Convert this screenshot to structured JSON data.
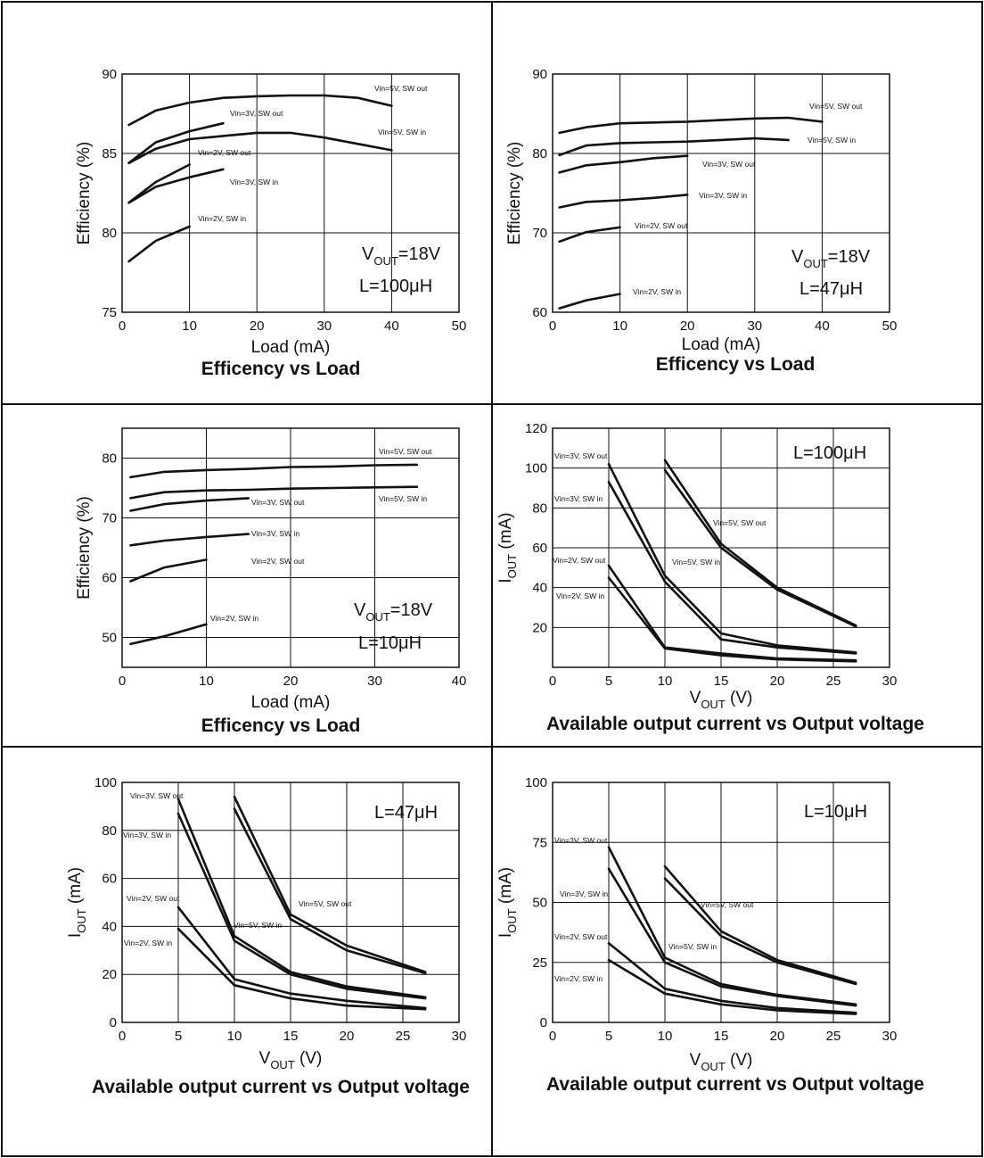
{
  "chart_data": [
    {
      "type": "line",
      "title": "Efficency vs Load",
      "xlabel": "Load (mA)",
      "ylabel": "Efficiency (%)",
      "xlim": [
        0,
        50
      ],
      "ylim": [
        75,
        90
      ],
      "xticks": [
        "0",
        "10",
        "20",
        "30",
        "40",
        "50"
      ],
      "yticks": [
        "75",
        "80",
        "85",
        "90"
      ],
      "grid": true,
      "annotation": {
        "v": "V",
        "sub": "OUT",
        "rest": "=18V",
        "line2": "L=100μH"
      },
      "series": [
        {
          "name": "Vin=5V, SW out",
          "x": [
            1,
            5,
            10,
            15,
            20,
            25,
            30,
            35,
            40
          ],
          "y": [
            86.8,
            87.7,
            88.2,
            88.5,
            88.6,
            88.65,
            88.65,
            88.5,
            88.0
          ]
        },
        {
          "name": "Vin=5V, SW in",
          "x": [
            1,
            5,
            10,
            15,
            20,
            25,
            30,
            35,
            40
          ],
          "y": [
            84.4,
            85.3,
            85.9,
            86.1,
            86.3,
            86.3,
            86.0,
            85.6,
            85.2
          ]
        },
        {
          "name": "Vin=3V, SW out",
          "x": [
            1,
            5,
            10,
            15
          ],
          "y": [
            84.4,
            85.7,
            86.4,
            86.9
          ]
        },
        {
          "name": "Vin=3V, SW in",
          "x": [
            1,
            5,
            10,
            15
          ],
          "y": [
            81.9,
            82.9,
            83.5,
            84.0
          ]
        },
        {
          "name": "Vin=2V, SW out",
          "x": [
            1,
            5,
            10
          ],
          "y": [
            81.9,
            83.2,
            84.3
          ]
        },
        {
          "name": "Vin=2V, SW in",
          "x": [
            1,
            5,
            10
          ],
          "y": [
            78.2,
            79.5,
            80.4
          ]
        }
      ]
    },
    {
      "type": "line",
      "title": "Efficency vs Load",
      "xlabel": "Load (mA)",
      "ylabel": "Efficiency (%)",
      "xlim": [
        0,
        50
      ],
      "ylim": [
        60,
        90
      ],
      "xticks": [
        "0",
        "10",
        "20",
        "30",
        "40",
        "50"
      ],
      "yticks": [
        "60",
        "70",
        "80",
        "90"
      ],
      "grid": true,
      "annotation": {
        "v": "V",
        "sub": "OUT",
        "rest": "=18V",
        "line2": "L=47μH"
      },
      "series": [
        {
          "name": "Vin=5V, SW out",
          "x": [
            1,
            5,
            10,
            15,
            20,
            25,
            30,
            35,
            40
          ],
          "y": [
            82.6,
            83.3,
            83.8,
            83.9,
            84.0,
            84.2,
            84.4,
            84.5,
            84.0
          ]
        },
        {
          "name": "Vin=5V, SW in",
          "x": [
            1,
            5,
            10,
            15,
            20,
            25,
            30,
            35
          ],
          "y": [
            79.8,
            81.0,
            81.3,
            81.4,
            81.5,
            81.7,
            81.9,
            81.7
          ]
        },
        {
          "name": "Vin=3V, SW out",
          "x": [
            1,
            5,
            10,
            15,
            20
          ],
          "y": [
            77.6,
            78.5,
            78.9,
            79.4,
            79.7
          ]
        },
        {
          "name": "Vin=3V, SW in",
          "x": [
            1,
            5,
            10,
            15,
            20
          ],
          "y": [
            73.2,
            73.9,
            74.1,
            74.4,
            74.8
          ]
        },
        {
          "name": "Vin=2V, SW out",
          "x": [
            1,
            5,
            10
          ],
          "y": [
            68.9,
            70.1,
            70.7
          ]
        },
        {
          "name": "Vin=2V, SW in",
          "x": [
            1,
            5,
            10
          ],
          "y": [
            60.5,
            61.5,
            62.3
          ]
        }
      ]
    },
    {
      "type": "line",
      "title": "Efficency vs Load",
      "xlabel": "Load (mA)",
      "ylabel": "Efficiency (%)",
      "xlim": [
        0,
        40
      ],
      "ylim": [
        45,
        85
      ],
      "xticks": [
        "0",
        "10",
        "20",
        "30",
        "40"
      ],
      "yticks": [
        "50",
        "60",
        "70",
        "80"
      ],
      "ytick_values": [
        50,
        60,
        70,
        80
      ],
      "grid": true,
      "annotation": {
        "v": "V",
        "sub": "OUT",
        "rest": "=18V",
        "line2": "L=10μH"
      },
      "series": [
        {
          "name": "Vin=5V, SW out",
          "x": [
            1,
            5,
            10,
            15,
            20,
            25,
            30,
            35
          ],
          "y": [
            76.8,
            77.7,
            78.0,
            78.2,
            78.5,
            78.6,
            78.8,
            78.9
          ]
        },
        {
          "name": "Vin=5V, SW in",
          "x": [
            1,
            5,
            10,
            15,
            20,
            25,
            30,
            35
          ],
          "y": [
            73.3,
            74.3,
            74.6,
            74.7,
            74.9,
            75.0,
            75.1,
            75.2
          ]
        },
        {
          "name": "Vin=3V, SW out",
          "x": [
            1,
            5,
            10,
            15
          ],
          "y": [
            71.2,
            72.3,
            72.9,
            73.3
          ]
        },
        {
          "name": "Vin=3V, SW in",
          "x": [
            1,
            5,
            10,
            15
          ],
          "y": [
            65.4,
            66.2,
            66.8,
            67.3
          ]
        },
        {
          "name": "Vin=2V, SW out",
          "x": [
            1,
            5,
            10
          ],
          "y": [
            59.4,
            61.7,
            63.0
          ]
        },
        {
          "name": "Vin=2V, SW in",
          "x": [
            1,
            5,
            10
          ],
          "y": [
            48.9,
            50.2,
            52.2
          ]
        }
      ]
    },
    {
      "type": "line",
      "title": "Available output current vs Output voltage",
      "xlabel": {
        "main": "V",
        "sub": "OUT",
        "unit": " (V)"
      },
      "ylabel": {
        "main": "I",
        "sub": "OUT",
        "unit": " (mA)"
      },
      "xlim": [
        0,
        30
      ],
      "ylim": [
        0,
        120
      ],
      "xticks": [
        "0",
        "5",
        "10",
        "15",
        "20",
        "25",
        "30"
      ],
      "yticks": [
        "20",
        "40",
        "60",
        "80",
        "100",
        "120"
      ],
      "ytick_values": [
        20,
        40,
        60,
        80,
        100,
        120
      ],
      "grid": true,
      "annotation": {
        "line2": "L=100μH"
      },
      "series": [
        {
          "name": "Vin=3V, SW out",
          "x": [
            5,
            10,
            15,
            20,
            27
          ],
          "y": [
            102,
            46,
            17,
            11,
            7.5
          ]
        },
        {
          "name": "Vin=3V, SW in",
          "x": [
            5,
            10,
            15,
            20,
            27
          ],
          "y": [
            93,
            43,
            14,
            10,
            7
          ]
        },
        {
          "name": "Vin=5V, SW out",
          "x": [
            10,
            15,
            20,
            27
          ],
          "y": [
            104,
            62,
            40,
            21
          ]
        },
        {
          "name": "Vin=5V, SW in",
          "x": [
            10,
            15,
            20,
            27
          ],
          "y": [
            99,
            60,
            39,
            20.5
          ]
        },
        {
          "name": "Vin=2V, SW out",
          "x": [
            5,
            10,
            15,
            20,
            27
          ],
          "y": [
            51,
            10,
            7,
            4.5,
            3.5
          ]
        },
        {
          "name": "Vin=2V, SW in",
          "x": [
            5,
            10,
            15,
            20,
            27
          ],
          "y": [
            45,
            9.5,
            6,
            4,
            3
          ]
        }
      ]
    },
    {
      "type": "line",
      "title": "Available output current vs Output voltage",
      "xlabel": {
        "main": "V",
        "sub": "OUT",
        "unit": " (V)"
      },
      "ylabel": {
        "main": "I",
        "sub": "OUT",
        "unit": " (mA)"
      },
      "xlim": [
        0,
        30
      ],
      "ylim": [
        0,
        100
      ],
      "xticks": [
        "0",
        "5",
        "10",
        "15",
        "20",
        "25",
        "30"
      ],
      "yticks": [
        "0",
        "20",
        "40",
        "60",
        "80",
        "100"
      ],
      "grid": true,
      "annotation": {
        "line2": "L=47μH"
      },
      "series": [
        {
          "name": "Vin=3V, SW out",
          "x": [
            5,
            10,
            15,
            20,
            27
          ],
          "y": [
            93,
            36,
            21,
            15,
            10.5
          ]
        },
        {
          "name": "Vin=3V, SW in",
          "x": [
            5,
            10,
            15,
            20,
            27
          ],
          "y": [
            87,
            34,
            20,
            14,
            10
          ]
        },
        {
          "name": "Vin=5V, SW out",
          "x": [
            10,
            15,
            20,
            27
          ],
          "y": [
            94,
            45,
            32,
            21
          ]
        },
        {
          "name": "Vin=5V, SW in",
          "x": [
            10,
            15,
            20,
            27
          ],
          "y": [
            89,
            43,
            30,
            20.5
          ]
        },
        {
          "name": "Vin=2V, SW out",
          "x": [
            5,
            10,
            15,
            20,
            27
          ],
          "y": [
            48,
            18,
            12,
            9,
            6
          ]
        },
        {
          "name": "Vin=2V, SW in",
          "x": [
            5,
            10,
            15,
            20,
            27
          ],
          "y": [
            39,
            15.5,
            10,
            7,
            5.5
          ]
        }
      ]
    },
    {
      "type": "line",
      "title": "Available output current vs Output voltage",
      "xlabel": {
        "main": "V",
        "sub": "OUT",
        "unit": " (V)"
      },
      "ylabel": {
        "main": "I",
        "sub": "OUT",
        "unit": " (mA)"
      },
      "xlim": [
        0,
        30
      ],
      "ylim": [
        0,
        100
      ],
      "xticks": [
        "0",
        "5",
        "10",
        "15",
        "20",
        "25",
        "30"
      ],
      "yticks": [
        "0",
        "25",
        "50",
        "75",
        "100"
      ],
      "ytick_values": [
        0,
        25,
        50,
        75,
        100
      ],
      "grid": true,
      "annotation": {
        "line2": "L=10μH"
      },
      "series": [
        {
          "name": "Vin=3V, SW out",
          "x": [
            5,
            10,
            15,
            20,
            27
          ],
          "y": [
            73,
            27,
            16,
            11.5,
            7.5
          ]
        },
        {
          "name": "Vin=3V, SW in",
          "x": [
            5,
            10,
            15,
            20,
            27
          ],
          "y": [
            64,
            25,
            15,
            11,
            7
          ]
        },
        {
          "name": "Vin=5V, SW out",
          "x": [
            10,
            15,
            20,
            27
          ],
          "y": [
            65,
            38,
            26,
            16.5
          ]
        },
        {
          "name": "Vin=5V, SW in",
          "x": [
            10,
            15,
            20,
            27
          ],
          "y": [
            60,
            36,
            25,
            16
          ]
        },
        {
          "name": "Vin=2V, SW out",
          "x": [
            5,
            10,
            15,
            20,
            27
          ],
          "y": [
            33,
            14,
            9,
            6,
            4
          ]
        },
        {
          "name": "Vin=2V, SW in",
          "x": [
            5,
            10,
            15,
            20,
            27
          ],
          "y": [
            26,
            12,
            7.5,
            5,
            3.5
          ]
        }
      ]
    }
  ]
}
